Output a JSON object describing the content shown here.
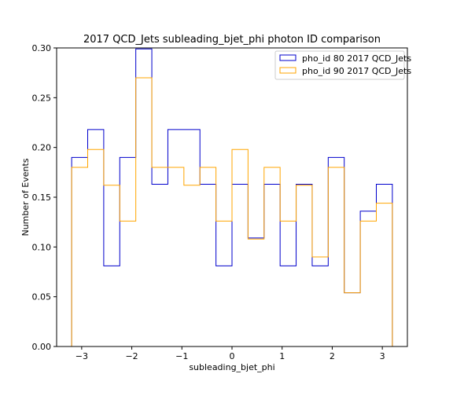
{
  "chart_data": {
    "type": "step-histogram",
    "title": "2017 QCD_Jets subleading_bjet_phi photon ID comparison",
    "xlabel": "subleading_bjet_phi",
    "ylabel": "Number of Events",
    "xlim": [
      -3.5,
      3.5
    ],
    "ylim": [
      0.0,
      0.3
    ],
    "xticks": [
      -3,
      -2,
      -1,
      0,
      1,
      2,
      3
    ],
    "xtick_labels": [
      "−3",
      "−2",
      "−1",
      "0",
      "1",
      "2",
      "3"
    ],
    "yticks": [
      0.0,
      0.05,
      0.1,
      0.15,
      0.2,
      0.25,
      0.3
    ],
    "ytick_labels": [
      "0.00",
      "0.05",
      "0.10",
      "0.15",
      "0.20",
      "0.25",
      "0.30"
    ],
    "bin_edges": [
      -3.2,
      -2.88,
      -2.56,
      -2.24,
      -1.92,
      -1.6,
      -1.28,
      -0.96,
      -0.64,
      -0.32,
      0.0,
      0.32,
      0.64,
      0.96,
      1.28,
      1.6,
      1.92,
      2.24,
      2.56,
      2.88,
      3.2
    ],
    "series": [
      {
        "name": "pho_id 80 2017 QCD_Jets",
        "color": "#0000cc",
        "values": [
          0.19,
          0.218,
          0.081,
          0.19,
          0.299,
          0.163,
          0.218,
          0.218,
          0.163,
          0.081,
          0.163,
          0.109,
          0.163,
          0.081,
          0.163,
          0.081,
          0.19,
          0.054,
          0.136,
          0.163
        ]
      },
      {
        "name": "pho_id 90 2017 QCD_Jets",
        "color": "#ffa500",
        "values": [
          0.18,
          0.198,
          0.162,
          0.126,
          0.27,
          0.18,
          0.18,
          0.162,
          0.18,
          0.126,
          0.198,
          0.108,
          0.18,
          0.126,
          0.162,
          0.09,
          0.18,
          0.054,
          0.126,
          0.144
        ]
      }
    ],
    "legend_position": "top-right",
    "grid": false
  }
}
